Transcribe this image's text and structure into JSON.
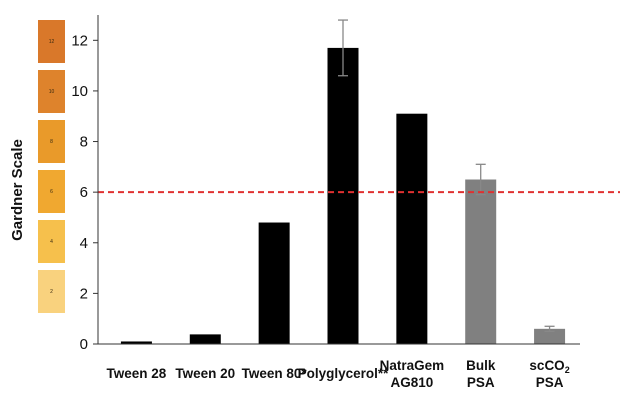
{
  "chart_data": {
    "type": "bar",
    "ylabel": "Gardner Scale",
    "ylim": [
      0,
      13
    ],
    "yticks": [
      0,
      2,
      4,
      6,
      8,
      10,
      12
    ],
    "categories": [
      [
        "Tween 28"
      ],
      [
        "Tween 20"
      ],
      [
        "Tween 80*"
      ],
      [
        "Polyglycerol**"
      ],
      [
        "NatraGem",
        "AG810"
      ],
      [
        "Bulk",
        "PSA"
      ],
      [
        "scCO",
        "PSA"
      ]
    ],
    "values": [
      0.1,
      0.38,
      4.8,
      11.7,
      9.1,
      6.5,
      0.6
    ],
    "errors": [
      null,
      null,
      null,
      1.1,
      null,
      0.6,
      0.1
    ],
    "bar_colors": [
      "#000000",
      "#000000",
      "#000000",
      "#000000",
      "#000000",
      "#808080",
      "#808080"
    ],
    "reference_line": {
      "value": 6,
      "color": "#e03030",
      "style": "dashed"
    },
    "color_scale": [
      {
        "label": "12",
        "color": "#d9782a"
      },
      {
        "label": "10",
        "color": "#de832c"
      },
      {
        "label": "8",
        "color": "#e99a2a"
      },
      {
        "label": "6",
        "color": "#f0a830"
      },
      {
        "label": "4",
        "color": "#f6c04c"
      },
      {
        "label": "2",
        "color": "#f9d27e"
      }
    ],
    "grid": false
  }
}
